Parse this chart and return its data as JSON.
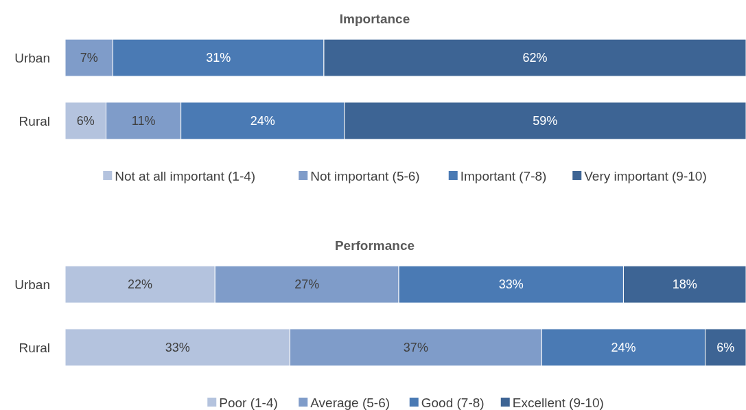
{
  "chart_data": [
    {
      "type": "bar",
      "orientation": "horizontal",
      "stacked": true,
      "title": "Importance",
      "categories": [
        "Urban",
        "Rural"
      ],
      "xlim": [
        0,
        100
      ],
      "legend": "bottom",
      "series": [
        {
          "name": "Not at all important (1-4)",
          "color": "#b4c3de",
          "values": [
            0,
            6
          ],
          "value_labels": [
            null,
            "6%"
          ]
        },
        {
          "name": "Not important (5-6)",
          "color": "#7f9cc9",
          "values": [
            7,
            11
          ],
          "value_labels": [
            "7%",
            "11%"
          ]
        },
        {
          "name": "Important (7-8)",
          "color": "#4a7ab4",
          "values": [
            31,
            24
          ],
          "value_labels": [
            "31%",
            "24%"
          ]
        },
        {
          "name": "Very important (9-10)",
          "color": "#3d6494",
          "values": [
            62,
            59
          ],
          "value_labels": [
            "62%",
            "59%"
          ]
        }
      ]
    },
    {
      "type": "bar",
      "orientation": "horizontal",
      "stacked": true,
      "title": "Performance",
      "categories": [
        "Urban",
        "Rural"
      ],
      "xlim": [
        0,
        100
      ],
      "legend": "bottom",
      "series": [
        {
          "name": "Poor (1-4)",
          "color": "#b4c3de",
          "values": [
            22,
            33
          ],
          "value_labels": [
            "22%",
            "33%"
          ]
        },
        {
          "name": "Average (5-6)",
          "color": "#7f9cc9",
          "values": [
            27,
            37
          ],
          "value_labels": [
            "27%",
            "37%"
          ]
        },
        {
          "name": "Good (7-8)",
          "color": "#4a7ab4",
          "values": [
            33,
            24
          ],
          "value_labels": [
            "33%",
            "24%"
          ]
        },
        {
          "name": "Excellent (9-10)",
          "color": "#3d6494",
          "values": [
            18,
            6
          ],
          "value_labels": [
            "18%",
            "6%"
          ]
        }
      ]
    }
  ]
}
